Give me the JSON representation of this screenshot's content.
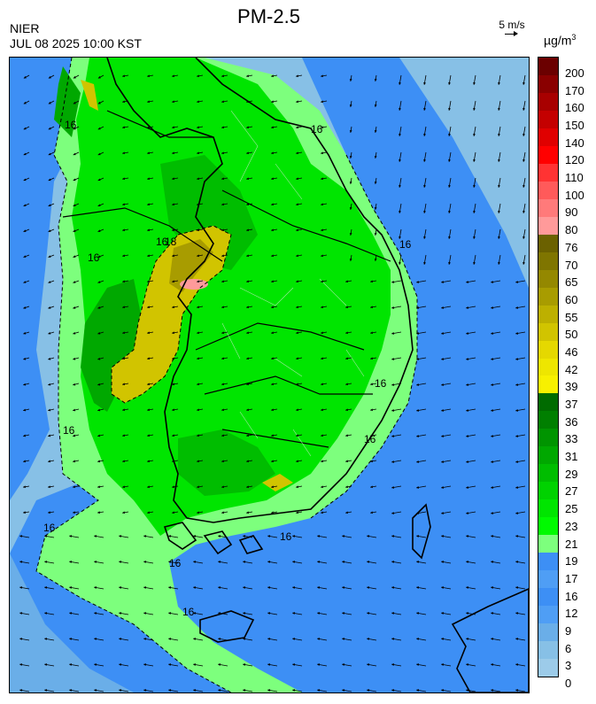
{
  "title": "PM-2.5",
  "source": "NIER",
  "timestamp": "JUL 08 2025 10:00 KST",
  "wind_reference": {
    "label": "5 m/s",
    "speed_ms": 5
  },
  "unit": {
    "base": "µg/m",
    "exponent": "3"
  },
  "legend": {
    "ticks": [
      "200",
      "170",
      "160",
      "150",
      "140",
      "120",
      "110",
      "100",
      "90",
      "80",
      "76",
      "70",
      "65",
      "60",
      "55",
      "50",
      "46",
      "42",
      "39",
      "37",
      "36",
      "33",
      "31",
      "29",
      "27",
      "25",
      "23",
      "21",
      "19",
      "17",
      "16",
      "12",
      "9",
      "6",
      "3",
      "0"
    ],
    "colors": [
      "#6b0000",
      "#8a0000",
      "#a80000",
      "#c40000",
      "#e00000",
      "#ff0000",
      "#ff3333",
      "#ff5a5a",
      "#ff7a7a",
      "#ff9a9a",
      "#6b6100",
      "#7f7500",
      "#948800",
      "#a89c00",
      "#bdb000",
      "#d1c400",
      "#e5d800",
      "#eee600",
      "#f7f000",
      "#006b00",
      "#007f00",
      "#009400",
      "#00a800",
      "#00bd00",
      "#00d200",
      "#00e500",
      "#00fa00",
      "#7dff7d",
      "#3d8ff5",
      "#4f9ef5",
      "#6aaee8",
      "#87c0e6"
    ],
    "bands": [
      {
        "range": "0-3",
        "color": "#87c0e6"
      },
      {
        "range": "3-6",
        "color": "#6aaee8"
      },
      {
        "range": "6-9",
        "color": "#4f9ef5"
      },
      {
        "range": "9-12",
        "color": "#3d8ff5"
      },
      {
        "range": "12-16",
        "color": "#3d8ff5"
      }
    ]
  },
  "contour_labels": [
    "16",
    "16",
    "16",
    "16",
    "16",
    "16",
    "16",
    "16",
    "16",
    "16",
    "16",
    "16",
    "18"
  ],
  "colors": {
    "sea_light": "#87c0e6",
    "sea_blue": "#3d8ff5",
    "land_light_green": "#7dff7d",
    "land_green": "#00e500",
    "land_dark_green": "#00a800",
    "yellow_band": "#d1c400",
    "dark_yellow": "#a89c00",
    "pink_hotspot": "#ff9a9a"
  }
}
